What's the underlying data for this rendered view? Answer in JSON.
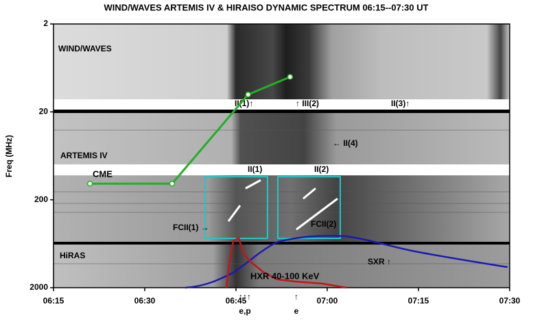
{
  "chart_data": {
    "type": "line",
    "title": "WIND/WAVES ARTEMIS IV & HIRAISO DYNAMIC SPECTRUM 06:15--07:30 UT",
    "ylabel": "Freq (MHz)",
    "log_y": true,
    "y_inverted": true,
    "ylim": [
      2,
      2000
    ],
    "yticks": [
      2,
      20,
      200,
      2000
    ],
    "xlim": [
      15,
      90
    ],
    "xticks": [
      {
        "value": 15,
        "label": "06:15"
      },
      {
        "value": 30,
        "label": "06:30"
      },
      {
        "value": 45,
        "label": "06:45"
      },
      {
        "value": 60,
        "label": "07:00"
      },
      {
        "value": 75,
        "label": "07:15"
      },
      {
        "value": 90,
        "label": "07:30"
      }
    ],
    "series": [
      {
        "name": "CME",
        "color": "#22b022",
        "x": [
          21,
          34.5,
          47,
          53.9
        ],
        "values": [
          131,
          131,
          12.7,
          8
        ]
      }
    ],
    "annotations": [
      "WIND/WAVES",
      "ARTEMIS IV",
      "HiRAS",
      "II(1)↑",
      "↑ III(2)",
      "II(3)↑",
      "← II(4)",
      "II(1)",
      "II(2)",
      "FCII(1) →",
      "FCII(2)",
      "SXR ↑",
      "HXR 40-100 KeV",
      "↑↑↑",
      "e,p",
      "↑",
      "e"
    ]
  }
}
